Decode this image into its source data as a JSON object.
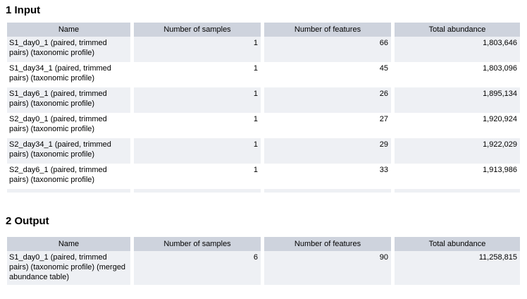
{
  "colors": {
    "header_bg": "#ced3dd",
    "row_alt_bg": "#eef0f4",
    "row_bg": "#ffffff",
    "text": "#000000"
  },
  "sections": [
    {
      "title": "1 Input",
      "columns": [
        "Name",
        "Number of samples",
        "Number of features",
        "Total abundance"
      ],
      "rows": [
        {
          "name": "S1_day0_1 (paired, trimmed pairs) (taxonomic profile)",
          "samples": "1",
          "features": "66",
          "abundance": "1,803,646"
        },
        {
          "name": "S1_day34_1 (paired, trimmed pairs) (taxonomic profile)",
          "samples": "1",
          "features": "45",
          "abundance": "1,803,096"
        },
        {
          "name": "S1_day6_1 (paired, trimmed pairs) (taxonomic profile)",
          "samples": "1",
          "features": "26",
          "abundance": "1,895,134"
        },
        {
          "name": "S2_day0_1 (paired, trimmed pairs) (taxonomic profile)",
          "samples": "1",
          "features": "27",
          "abundance": "1,920,924"
        },
        {
          "name": "S2_day34_1 (paired, trimmed pairs) (taxonomic profile)",
          "samples": "1",
          "features": "29",
          "abundance": "1,922,029"
        },
        {
          "name": "S2_day6_1 (paired, trimmed pairs) (taxonomic profile)",
          "samples": "1",
          "features": "33",
          "abundance": "1,913,986"
        }
      ]
    },
    {
      "title": "2 Output",
      "columns": [
        "Name",
        "Number of samples",
        "Number of features",
        "Total abundance"
      ],
      "rows": [
        {
          "name": "S1_day0_1 (paired, trimmed pairs) (taxonomic profile) (merged abundance table)",
          "samples": "6",
          "features": "90",
          "abundance": "11,258,815"
        }
      ]
    }
  ]
}
